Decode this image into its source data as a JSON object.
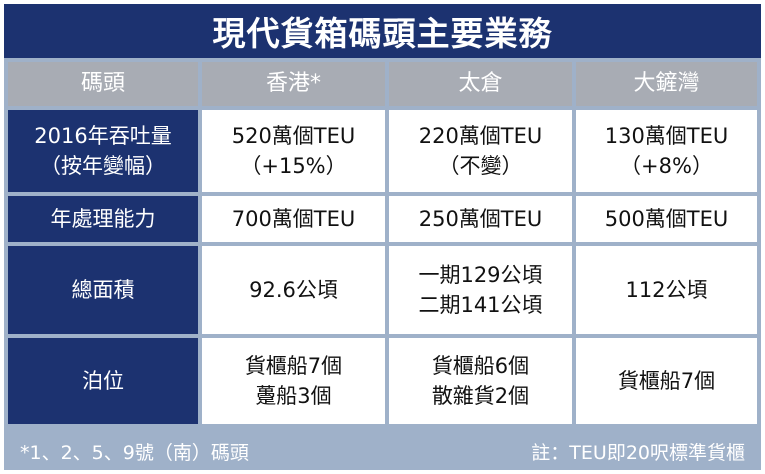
{
  "title": "現代貨箱碼頭主要業務",
  "chart_data": {
    "type": "table",
    "headers": [
      "碼頭",
      "香港*",
      "太倉",
      "大鏟灣"
    ],
    "rows": [
      {
        "label": [
          "2016年吞吐量",
          "（按年變幅）"
        ],
        "cells": [
          [
            "520萬個TEU",
            "（+15%）"
          ],
          [
            "220萬個TEU",
            "（不變）"
          ],
          [
            "130萬個TEU",
            "（+8%）"
          ]
        ]
      },
      {
        "label": [
          "年處理能力"
        ],
        "cells": [
          [
            "700萬個TEU"
          ],
          [
            "250萬個TEU"
          ],
          [
            "500萬個TEU"
          ]
        ]
      },
      {
        "label": [
          "總面積"
        ],
        "cells": [
          [
            "92.6公頃"
          ],
          [
            "一期129公頃",
            "二期141公頃"
          ],
          [
            "112公頃"
          ]
        ]
      },
      {
        "label": [
          "泊位"
        ],
        "cells": [
          [
            "貨櫃船7個",
            "躉船3個"
          ],
          [
            "貨櫃船6個",
            "散雜貨2個"
          ],
          [
            "貨櫃船7個"
          ]
        ]
      }
    ]
  },
  "footer": {
    "left_note": "*1、2、5、9號（南）碼頭",
    "right_note": "註：TEU即20呎標準貨櫃"
  },
  "colors": {
    "title_bg": "#1c3270",
    "header_bg": "#a8acb4",
    "frame_bg": "#9fb1c9",
    "cell_bg": "#ffffff"
  }
}
